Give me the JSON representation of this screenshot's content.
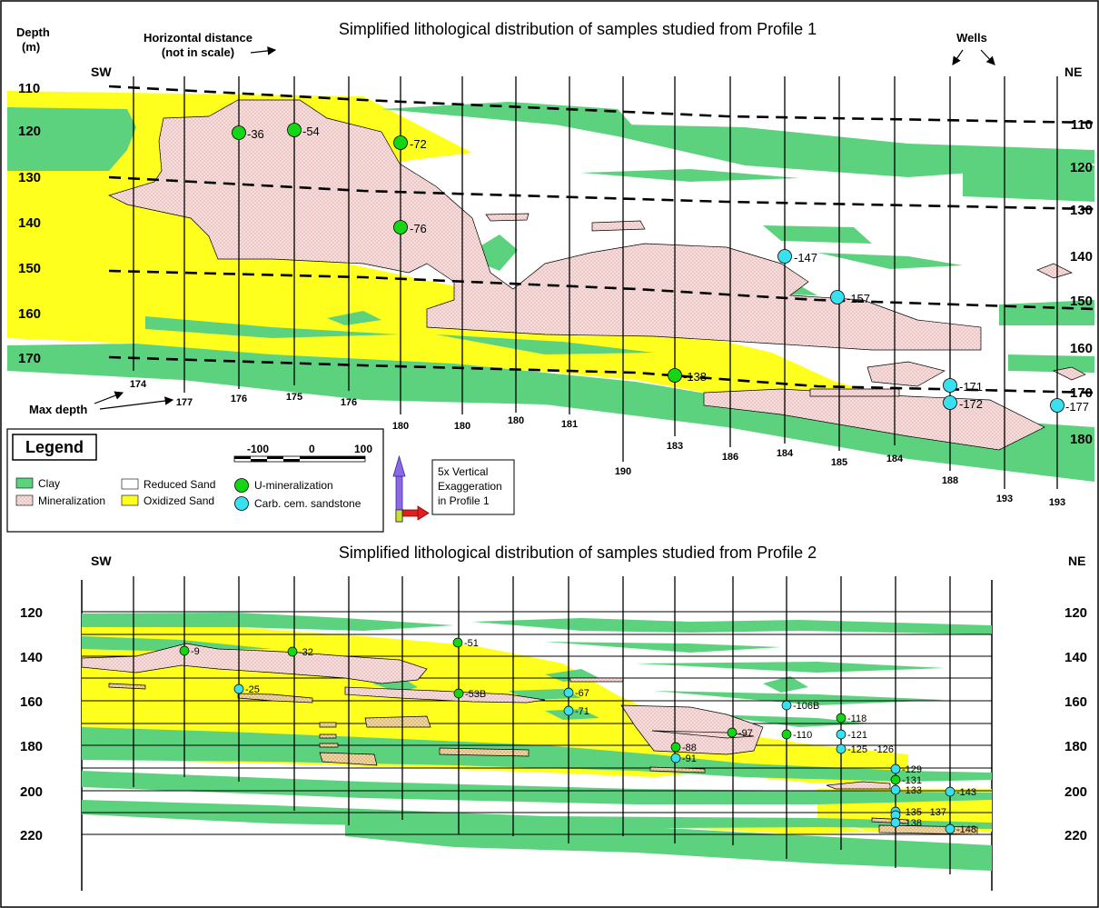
{
  "colors": {
    "clay": "#5cd27e",
    "mineralization": "#f6dede",
    "oxidized_sand": "#ffff1e",
    "reduced_sand": "#ffffff",
    "u_mineralization": "#14d614",
    "carb_cemented_sandstone": "#38e0f0"
  },
  "profile1": {
    "title": "Simplified lithological distribution of samples studied from Profile 1",
    "depth_header_line1": "Depth",
    "depth_header_line2": "(m)",
    "horizontal_distance_line1": "Horizontal distance",
    "horizontal_distance_line2": "(not in scale)",
    "wells_label": "Wells",
    "sw_label": "SW",
    "ne_label": "NE",
    "max_depth_label": "Max depth",
    "left_depths": [
      "110",
      "120",
      "130",
      "140",
      "150",
      "160",
      "170"
    ],
    "right_depths": [
      "110",
      "120",
      "130",
      "140",
      "150",
      "160",
      "170",
      "180"
    ],
    "well_max_depths": [
      "174",
      "177",
      "176",
      "175",
      "176",
      "180",
      "180",
      "180",
      "181",
      "190",
      "183",
      "186",
      "184",
      "185",
      "184",
      "188",
      "193",
      "193"
    ],
    "samples": [
      {
        "label": "-36",
        "type": "U-mineralization"
      },
      {
        "label": "-54",
        "type": "U-mineralization"
      },
      {
        "label": "-72",
        "type": "U-mineralization"
      },
      {
        "label": "-76",
        "type": "U-mineralization"
      },
      {
        "label": "-138",
        "type": "U-mineralization"
      },
      {
        "label": "-147",
        "type": "Carb. cem. sandstone"
      },
      {
        "label": "-157",
        "type": "Carb. cem. sandstone"
      },
      {
        "label": "-171",
        "type": "Carb. cem. sandstone"
      },
      {
        "label": "-172",
        "type": "Carb. cem. sandstone"
      },
      {
        "label": "-177",
        "type": "Carb. cem. sandstone"
      }
    ]
  },
  "legend": {
    "title": "Legend",
    "scale_labels": [
      "-100",
      "0",
      "100"
    ],
    "items": {
      "clay": "Clay",
      "mineralization": "Mineralization",
      "reduced_sand": "Reduced Sand",
      "oxidized_sand": "Oxidized Sand",
      "u_mineralization": "U-mineralization",
      "carb_cem_sandstone": "Carb. cem. sandstone"
    },
    "exaggeration_line1": "5x Vertical",
    "exaggeration_line2": "Exaggeration",
    "exaggeration_line3": "in Profile 1"
  },
  "profile2": {
    "title": "Simplified lithological distribution of samples studied from Profile 2",
    "sw_label": "SW",
    "ne_label": "NE",
    "left_depths": [
      "120",
      "140",
      "160",
      "180",
      "200",
      "220"
    ],
    "right_depths": [
      "120",
      "140",
      "160",
      "180",
      "200",
      "220"
    ],
    "samples": [
      {
        "label": "-9",
        "type": "U-mineralization"
      },
      {
        "label": "-32",
        "type": "U-mineralization"
      },
      {
        "label": "-51",
        "type": "U-mineralization"
      },
      {
        "label": "-53B",
        "type": "U-mineralization"
      },
      {
        "label": "-25",
        "type": "Carb. cem. sandstone"
      },
      {
        "label": "-67",
        "type": "Carb. cem. sandstone"
      },
      {
        "label": "-71",
        "type": "Carb. cem. sandstone"
      },
      {
        "label": "-88",
        "type": "U-mineralization"
      },
      {
        "label": "-91",
        "type": "Carb. cem. sandstone"
      },
      {
        "label": "-97",
        "type": "U-mineralization"
      },
      {
        "label": "-106B",
        "type": "Carb. cem. sandstone"
      },
      {
        "label": "-110",
        "type": "U-mineralization"
      },
      {
        "label": "-118",
        "type": "U-mineralization"
      },
      {
        "label": "-121",
        "type": "Carb. cem. sandstone"
      },
      {
        "label": "-125",
        "type": "Carb. cem. sandstone"
      },
      {
        "label": "-126",
        "type": "Carb. cem. sandstone"
      },
      {
        "label": "-129",
        "type": "Carb. cem. sandstone"
      },
      {
        "label": "-131",
        "type": "U-mineralization"
      },
      {
        "label": "-133",
        "type": "Carb. cem. sandstone"
      },
      {
        "label": "-135",
        "type": "Carb. cem. sandstone"
      },
      {
        "label": "-137",
        "type": "Carb. cem. sandstone"
      },
      {
        "label": "-138",
        "type": "Carb. cem. sandstone"
      },
      {
        "label": "-143",
        "type": "Carb. cem. sandstone"
      },
      {
        "label": "-148",
        "type": "Carb. cem. sandstone"
      }
    ]
  }
}
